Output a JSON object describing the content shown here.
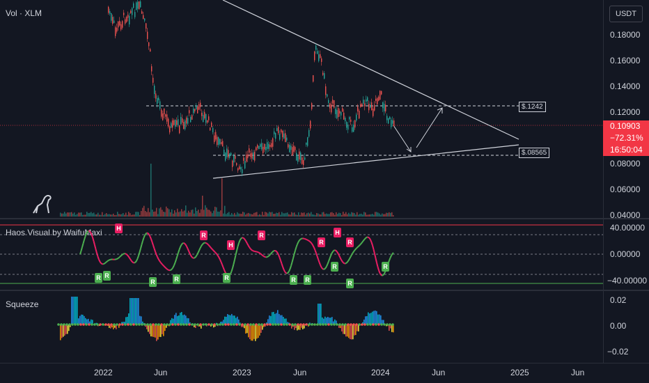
{
  "main": {
    "title": "Vol · XLM",
    "currency": "USDT",
    "price_axis": [
      "0.18000",
      "0.16000",
      "0.14000",
      "0.12000",
      "0.08000",
      "0.06000",
      "0.04000"
    ],
    "price_tag": {
      "price": "0.10903",
      "change": "−72.31%",
      "countdown": "16:50:04"
    },
    "levels": [
      {
        "label": "$.1242"
      },
      {
        "label": "$.08565"
      }
    ],
    "colors": {
      "up": "#26a69a",
      "down": "#ef5350",
      "price": "#f23645"
    }
  },
  "haos": {
    "title": "Haos Visual by WaifuMaxi",
    "axis": [
      "40.00000",
      "0.00000",
      "−40.00000"
    ],
    "markers": {
      "high": "H",
      "reversal": "R"
    }
  },
  "squeeze": {
    "title": "Squeeze",
    "axis": [
      "0.02",
      "0.00",
      "−0.02"
    ]
  },
  "time_axis": [
    "2022",
    "Jun",
    "2023",
    "Jun",
    "2024",
    "Jun",
    "2025",
    "Jun"
  ],
  "icons": {
    "logo": "dinosaur-logo-icon"
  }
}
